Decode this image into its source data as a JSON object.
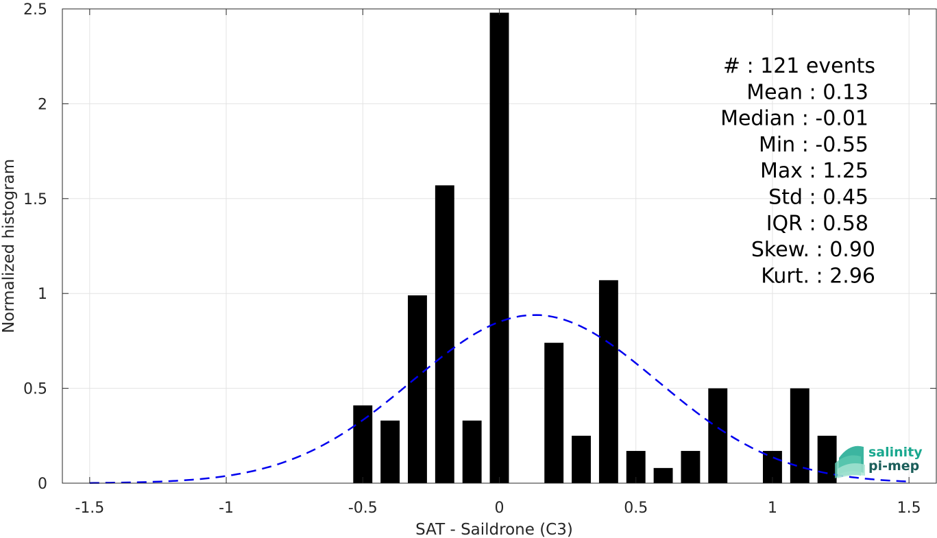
{
  "chart_data": {
    "type": "bar",
    "xlabel": "SAT - Saildrone (C3)",
    "ylabel": "Normalized histogram",
    "xlim": [
      -1.6,
      1.6
    ],
    "ylim": [
      0,
      2.5
    ],
    "xticks": [
      -1.5,
      -1,
      -0.5,
      0,
      0.5,
      1,
      1.5
    ],
    "xtick_labels": [
      "-1.5",
      "-1",
      "-0.5",
      "0",
      "0.5",
      "1",
      "1.5"
    ],
    "yticks": [
      0,
      0.5,
      1,
      1.5,
      2,
      2.5
    ],
    "ytick_labels": [
      "0",
      "0.5",
      "1",
      "1.5",
      "2",
      "2.5"
    ],
    "grid": true,
    "bar_color": "#000000",
    "bins": [
      {
        "x": -0.5,
        "value": 0.41
      },
      {
        "x": -0.4,
        "value": 0.33
      },
      {
        "x": -0.3,
        "value": 0.99
      },
      {
        "x": -0.2,
        "value": 1.57
      },
      {
        "x": -0.1,
        "value": 0.33
      },
      {
        "x": 0.0,
        "value": 2.48
      },
      {
        "x": 0.2,
        "value": 0.74
      },
      {
        "x": 0.3,
        "value": 0.25
      },
      {
        "x": 0.4,
        "value": 1.07
      },
      {
        "x": 0.5,
        "value": 0.17
      },
      {
        "x": 0.6,
        "value": 0.08
      },
      {
        "x": 0.7,
        "value": 0.17
      },
      {
        "x": 0.8,
        "value": 0.5
      },
      {
        "x": 1.0,
        "value": 0.17
      },
      {
        "x": 1.1,
        "value": 0.5
      },
      {
        "x": 1.2,
        "value": 0.25
      }
    ],
    "bin_width": 0.1,
    "fit_curve": {
      "style": "dashed",
      "color": "#0000ee",
      "mean": 0.13,
      "std": 0.45,
      "x_range": [
        -1.5,
        1.5
      ]
    },
    "stats": [
      {
        "label": "#  : 121 events"
      },
      {
        "label": "Mean : 0.13"
      },
      {
        "label": "Median : -0.01"
      },
      {
        "label": "Min : -0.55"
      },
      {
        "label": "Max : 1.25"
      },
      {
        "label": "Std : 0.45"
      },
      {
        "label": "IQR : 0.58"
      },
      {
        "label": "Skew. : 0.90"
      },
      {
        "label": "Kurt. : 2.96"
      }
    ]
  },
  "logo": {
    "line1": "salinity",
    "line2": "pi-mep",
    "color1": "#1aa88f",
    "color2": "#1b5e5a"
  }
}
